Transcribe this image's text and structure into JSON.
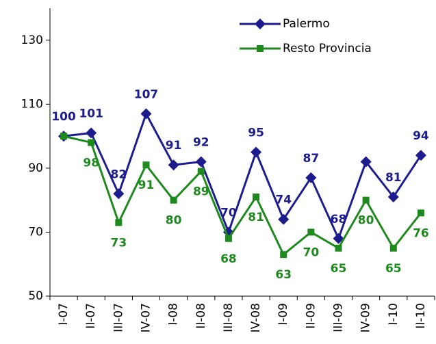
{
  "chart_data": {
    "type": "line",
    "categories": [
      "I-07",
      "II-07",
      "III-07",
      "IV-07",
      "I-08",
      "II-08",
      "III-08",
      "IV-08",
      "I-09",
      "II-09",
      "III-09",
      "IV-09",
      "I-10",
      "II-10"
    ],
    "series": [
      {
        "name": "Palermo",
        "color": "#1c1c8e",
        "marker": "diamond",
        "values": [
          100,
          101,
          82,
          107,
          91,
          92,
          70,
          95,
          74,
          87,
          68,
          92,
          81,
          94
        ],
        "value_labels": [
          "100",
          "101",
          "82",
          "107",
          "91",
          "92",
          "70",
          "95",
          "74",
          "87",
          "68",
          null,
          "81",
          "94"
        ]
      },
      {
        "name": "Resto Provincia",
        "color": "#1e8a1e",
        "marker": "square",
        "values": [
          100,
          98,
          73,
          91,
          80,
          89,
          68,
          81,
          63,
          70,
          65,
          80,
          65,
          76
        ],
        "value_labels": [
          null,
          "98",
          "73",
          "91",
          "80",
          "89",
          "68",
          "81",
          "63",
          "70",
          "65",
          "80",
          "65",
          "76"
        ]
      }
    ],
    "ylim": [
      50,
      140
    ],
    "yticks": [
      50,
      70,
      90,
      110,
      130
    ],
    "legend": "top-right"
  }
}
